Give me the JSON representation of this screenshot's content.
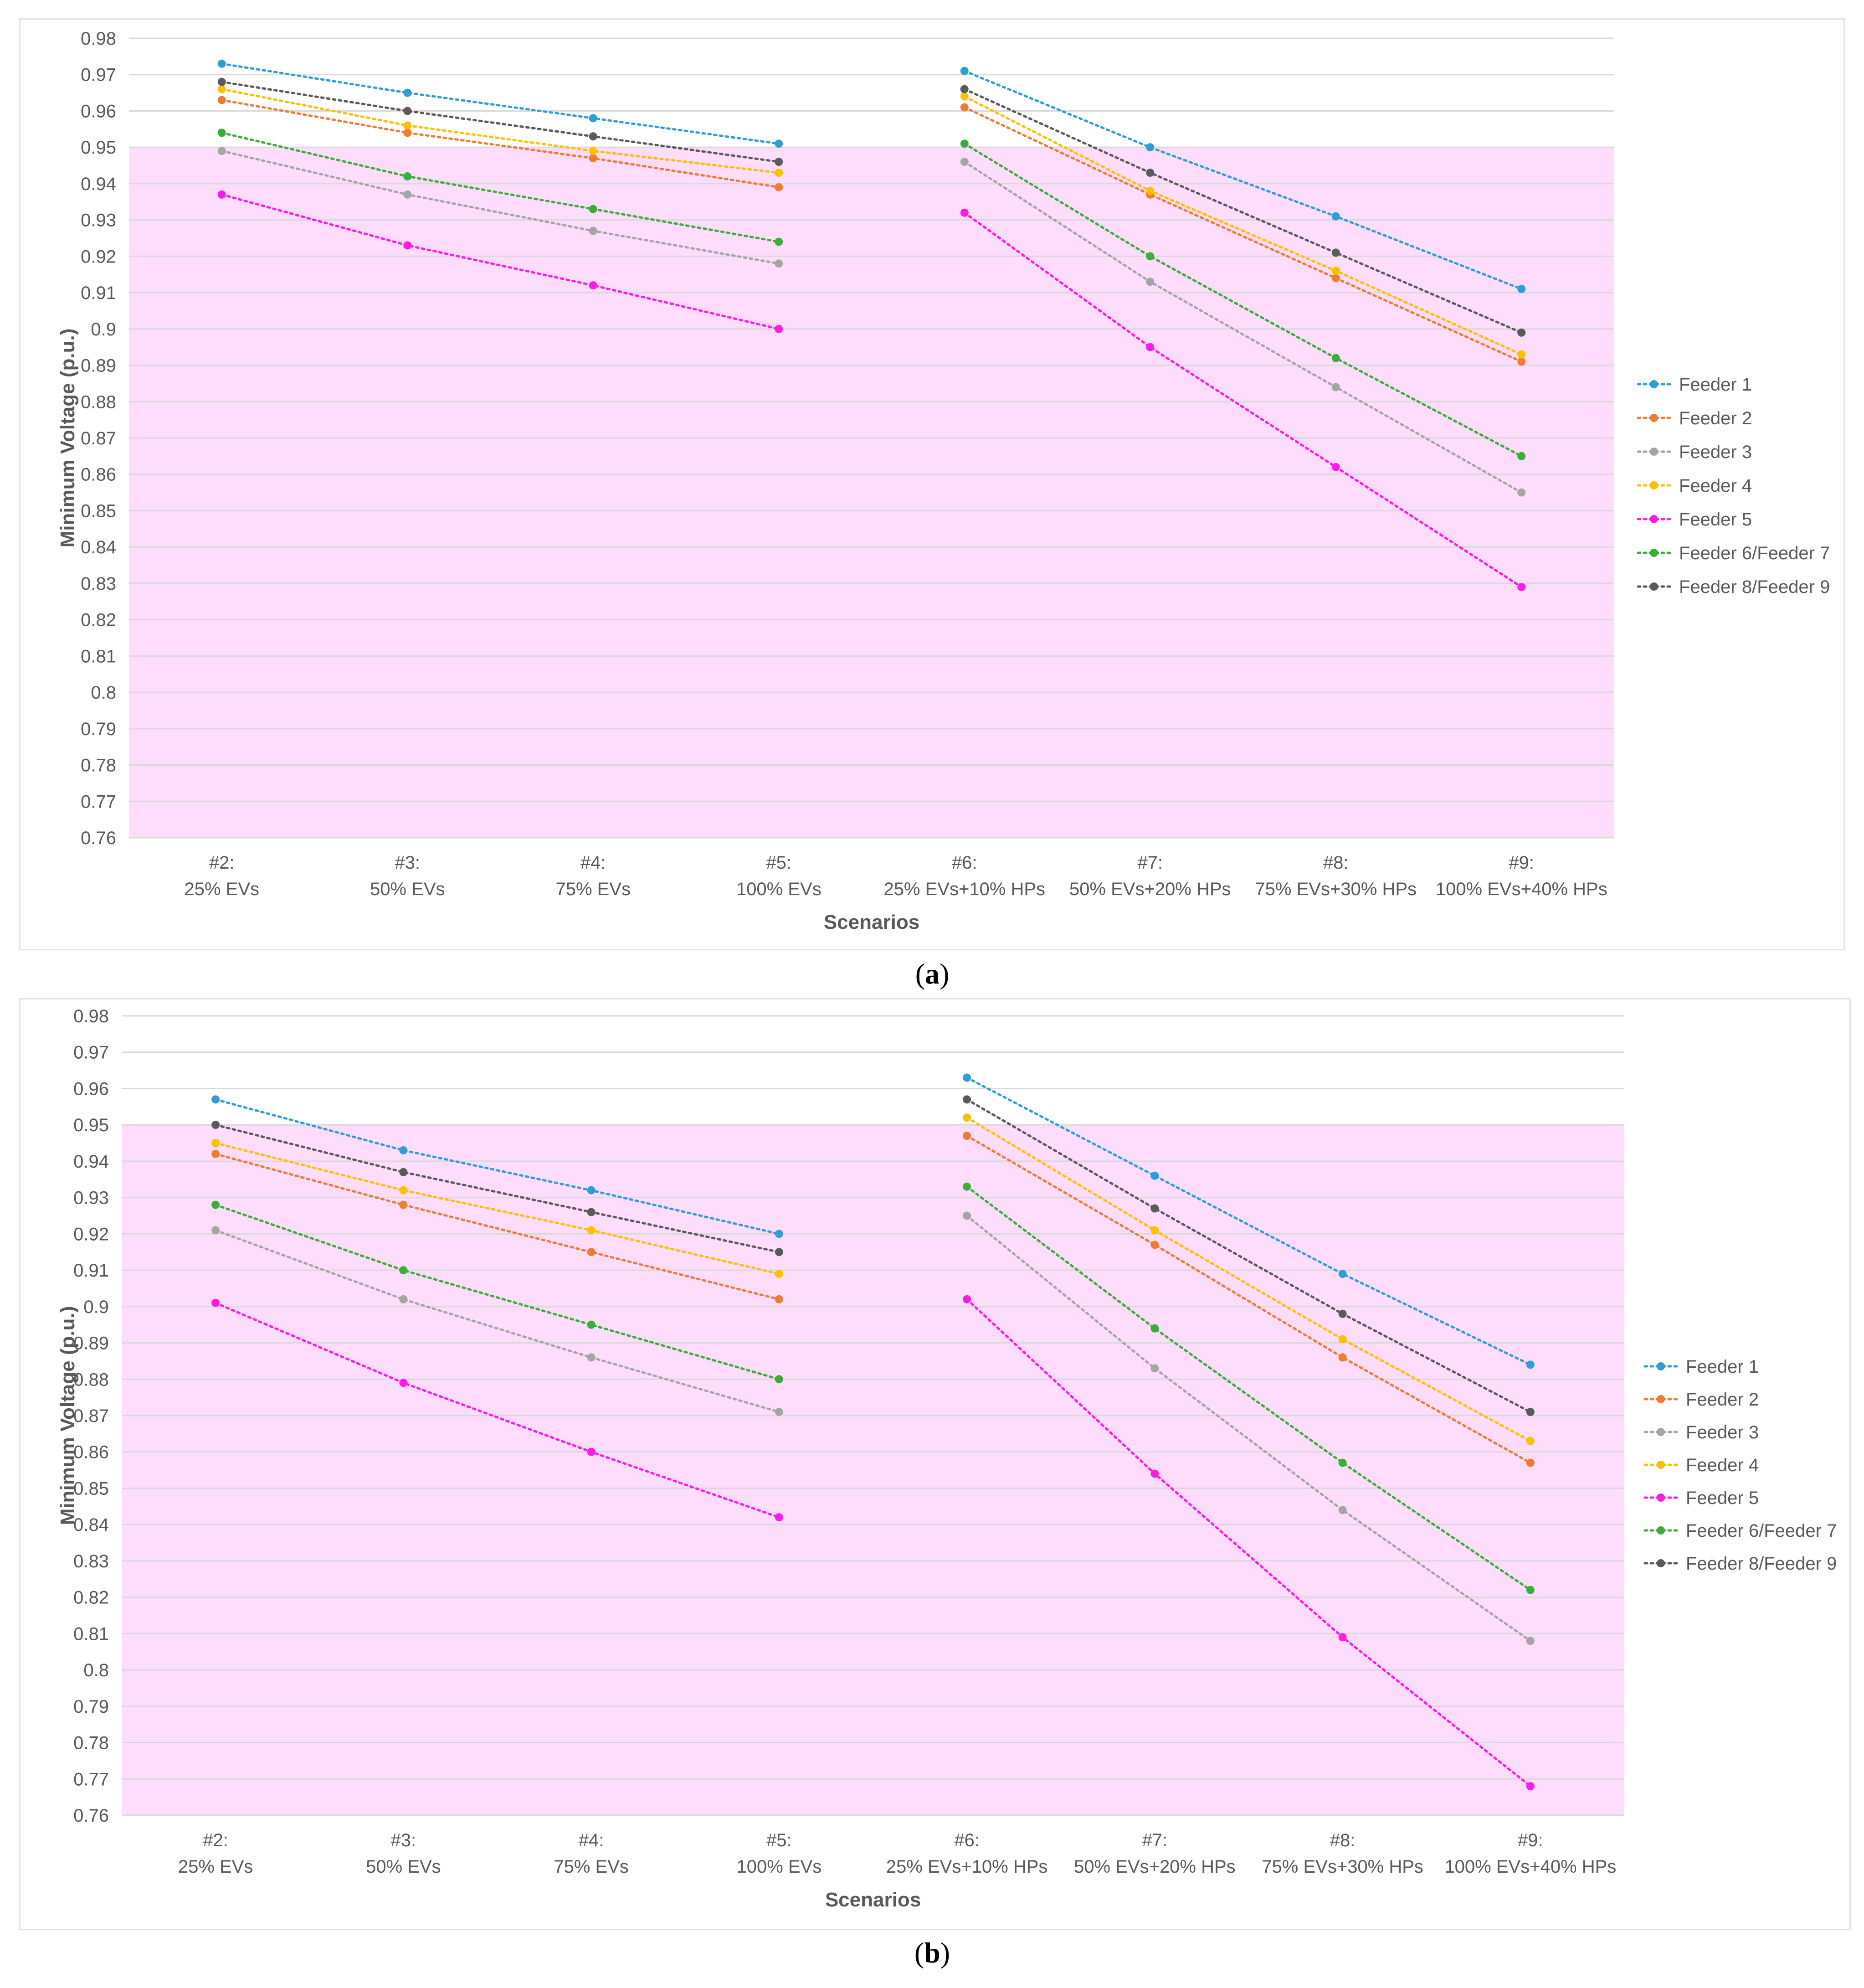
{
  "chart_data": [
    {
      "type": "line",
      "panel": "a",
      "ylabel": "Minimum Voltage (p.u.)",
      "xlabel": "Scenarios",
      "ylim": [
        0.76,
        0.98
      ],
      "ytick_step": 0.01,
      "yticks": [
        "0.76",
        "0.77",
        "0.78",
        "0.79",
        "0.8",
        "0.81",
        "0.82",
        "0.83",
        "0.84",
        "0.85",
        "0.86",
        "0.87",
        "0.88",
        "0.89",
        "0.9",
        "0.91",
        "0.92",
        "0.93",
        "0.94",
        "0.95",
        "0.96",
        "0.97",
        "0.98"
      ],
      "shaded_band": {
        "from": 0.76,
        "to": 0.95,
        "color": "#fddcfc"
      },
      "legend_position": "right",
      "categories": [
        [
          "#2:",
          "25% EVs"
        ],
        [
          "#3:",
          "50% EVs"
        ],
        [
          "#4:",
          "75% EVs"
        ],
        [
          "#5:",
          "100% EVs"
        ],
        [
          "#6:",
          "25% EVs+10% HPs"
        ],
        [
          "#7:",
          "50% EVs+20% HPs"
        ],
        [
          "#8:",
          "75% EVs+30% HPs"
        ],
        [
          "#9:",
          "100% EVs+40% HPs"
        ]
      ],
      "segments": [
        [
          0,
          3
        ],
        [
          4,
          7
        ]
      ],
      "series": [
        {
          "name": "Feeder 1",
          "color": "#2e9fd6",
          "values": [
            0.973,
            0.965,
            0.958,
            0.951,
            0.971,
            0.95,
            0.931,
            0.911
          ]
        },
        {
          "name": "Feeder 2",
          "color": "#f07b34",
          "values": [
            0.963,
            0.954,
            0.947,
            0.939,
            0.961,
            0.937,
            0.914,
            0.891
          ]
        },
        {
          "name": "Feeder 3",
          "color": "#a5a5a5",
          "values": [
            0.949,
            0.937,
            0.927,
            0.918,
            0.946,
            0.913,
            0.884,
            0.855
          ]
        },
        {
          "name": "Feeder 4",
          "color": "#ffc000",
          "values": [
            0.966,
            0.956,
            0.949,
            0.943,
            0.964,
            0.938,
            0.916,
            0.893
          ]
        },
        {
          "name": "Feeder 5",
          "color": "#ff1ae6",
          "values": [
            0.937,
            0.923,
            0.912,
            0.9,
            0.932,
            0.895,
            0.862,
            0.829
          ]
        },
        {
          "name": "Feeder 6/Feeder 7",
          "color": "#3aad3a",
          "values": [
            0.954,
            0.942,
            0.933,
            0.924,
            0.951,
            0.92,
            0.892,
            0.865
          ]
        },
        {
          "name": "Feeder 8/Feeder 9",
          "color": "#5a5a5a",
          "values": [
            0.968,
            0.96,
            0.953,
            0.946,
            0.966,
            0.943,
            0.921,
            0.899
          ]
        }
      ]
    },
    {
      "type": "line",
      "panel": "b",
      "ylabel": "Minimum Voltage (p.u.)",
      "xlabel": "Scenarios",
      "ylim": [
        0.76,
        0.98
      ],
      "ytick_step": 0.01,
      "yticks": [
        "0.76",
        "0.77",
        "0.78",
        "0.79",
        "0.8",
        "0.81",
        "0.82",
        "0.83",
        "0.84",
        "0.85",
        "0.86",
        "0.87",
        "0.88",
        "0.89",
        "0.9",
        "0.91",
        "0.92",
        "0.93",
        "0.94",
        "0.95",
        "0.96",
        "0.97",
        "0.98"
      ],
      "shaded_band": {
        "from": 0.76,
        "to": 0.95,
        "color": "#fddcfc"
      },
      "legend_position": "right",
      "categories": [
        [
          "#2:",
          "25% EVs"
        ],
        [
          "#3:",
          "50% EVs"
        ],
        [
          "#4:",
          "75% EVs"
        ],
        [
          "#5:",
          "100% EVs"
        ],
        [
          "#6:",
          "25% EVs+10% HPs"
        ],
        [
          "#7:",
          "50% EVs+20% HPs"
        ],
        [
          "#8:",
          "75% EVs+30% HPs"
        ],
        [
          "#9:",
          "100% EVs+40% HPs"
        ]
      ],
      "segments": [
        [
          0,
          3
        ],
        [
          4,
          7
        ]
      ],
      "series": [
        {
          "name": "Feeder 1",
          "color": "#2e9fd6",
          "values": [
            0.957,
            0.943,
            0.932,
            0.92,
            0.963,
            0.936,
            0.909,
            0.884
          ]
        },
        {
          "name": "Feeder 2",
          "color": "#f07b34",
          "values": [
            0.942,
            0.928,
            0.915,
            0.902,
            0.947,
            0.917,
            0.886,
            0.857
          ]
        },
        {
          "name": "Feeder 3",
          "color": "#a5a5a5",
          "values": [
            0.921,
            0.902,
            0.886,
            0.871,
            0.925,
            0.883,
            0.844,
            0.808
          ]
        },
        {
          "name": "Feeder 4",
          "color": "#ffc000",
          "values": [
            0.945,
            0.932,
            0.921,
            0.909,
            0.952,
            0.921,
            0.891,
            0.863
          ]
        },
        {
          "name": "Feeder 5",
          "color": "#ff1ae6",
          "values": [
            0.901,
            0.879,
            0.86,
            0.842,
            0.902,
            0.854,
            0.809,
            0.768
          ]
        },
        {
          "name": "Feeder 6/Feeder 7",
          "color": "#3aad3a",
          "values": [
            0.928,
            0.91,
            0.895,
            0.88,
            0.933,
            0.894,
            0.857,
            0.822
          ]
        },
        {
          "name": "Feeder 8/Feeder 9",
          "color": "#5a5a5a",
          "values": [
            0.95,
            0.937,
            0.926,
            0.915,
            0.957,
            0.927,
            0.898,
            0.871
          ]
        }
      ]
    }
  ],
  "captions": {
    "a": {
      "open": "(",
      "letter": "a",
      "close": ")"
    },
    "b": {
      "open": "(",
      "letter": "b",
      "close": ")"
    }
  }
}
